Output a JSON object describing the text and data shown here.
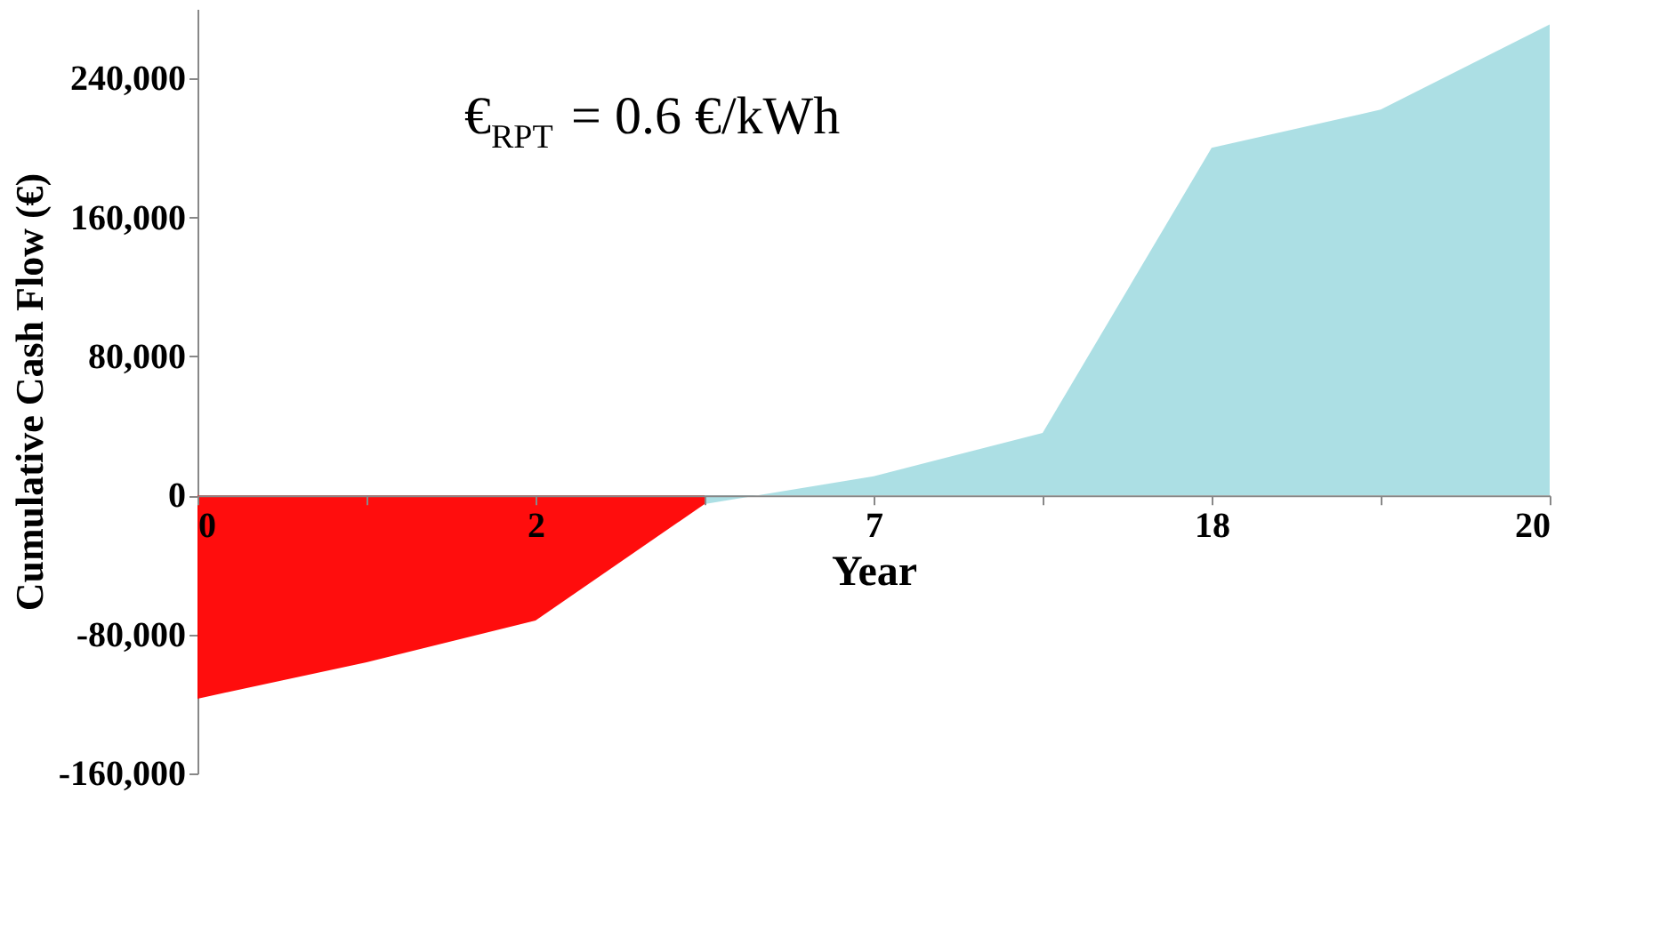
{
  "chart_data": {
    "type": "area",
    "xlabel": "Year",
    "ylabel": "Cumulative Cash Flow (€)",
    "categories": [
      "0",
      null,
      "2",
      null,
      "7",
      null,
      "18",
      null,
      "20"
    ],
    "series": [
      {
        "color": "#ff0000",
        "values": [
          -117000,
          -96000,
          -72000,
          -5000,
          null,
          null,
          null,
          null,
          null
        ]
      },
      {
        "color": "#a8dde3",
        "values": [
          null,
          null,
          null,
          -5000,
          11000,
          36000,
          200000,
          222000,
          271000
        ]
      }
    ],
    "ylim": [
      -160000,
      280000
    ],
    "yticks": [
      {
        "value": -160000,
        "label": "-160,000"
      },
      {
        "value": -80000,
        "label": "-80,000"
      },
      0,
      {
        "value": 80000,
        "label": "80,000"
      },
      {
        "value": 160000,
        "label": "160,000"
      },
      {
        "value": 240000,
        "label": "240,000"
      }
    ],
    "grid": false,
    "annotations": [
      "€$_{RPT}$ = 0.6 €/kWh"
    ]
  }
}
